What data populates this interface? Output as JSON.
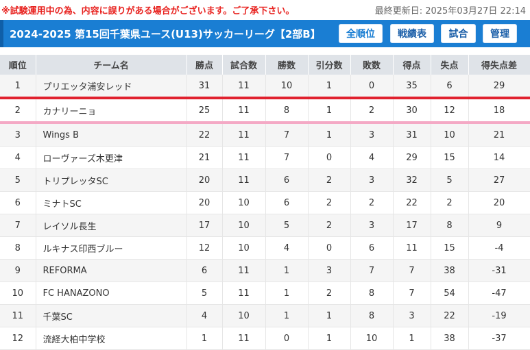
{
  "notice": "※試験運用中の為、内容に誤りがある場合がございます。ご了承下さい。",
  "last_updated": "最終更新日: 2025年03月27日 22:14",
  "league_title": "2024-2025 第15回千葉県ユース(U13)サッカーリーグ【2部B】",
  "nav": {
    "standings": "全順位",
    "results": "戦績表",
    "matches": "試合",
    "manage": "管理"
  },
  "colors": {
    "header_bg": "#1a7ed3",
    "promotion_line": "#e0212e",
    "playoff_line": "#f4a9c5",
    "notice_text": "#e8221f"
  },
  "table": {
    "columns": [
      "順位",
      "チーム名",
      "勝点",
      "試合数",
      "勝数",
      "引分数",
      "敗数",
      "得点",
      "失点",
      "得失点差"
    ],
    "rows": [
      [
        "1",
        "プリエッタ浦安レッド",
        "31",
        "11",
        "10",
        "1",
        "0",
        "35",
        "6",
        "29"
      ],
      [
        "2",
        "カナリーニョ",
        "25",
        "11",
        "8",
        "1",
        "2",
        "30",
        "12",
        "18"
      ],
      [
        "3",
        "Wings B",
        "22",
        "11",
        "7",
        "1",
        "3",
        "31",
        "10",
        "21"
      ],
      [
        "4",
        "ローヴァーズ木更津",
        "21",
        "11",
        "7",
        "0",
        "4",
        "29",
        "15",
        "14"
      ],
      [
        "5",
        "トリプレッタSC",
        "20",
        "11",
        "6",
        "2",
        "3",
        "32",
        "5",
        "27"
      ],
      [
        "6",
        "ミナトSC",
        "20",
        "10",
        "6",
        "2",
        "2",
        "22",
        "2",
        "20"
      ],
      [
        "7",
        "レイソル長生",
        "17",
        "10",
        "5",
        "2",
        "3",
        "17",
        "8",
        "9"
      ],
      [
        "8",
        "ルキナス印西ブルー",
        "12",
        "10",
        "4",
        "0",
        "6",
        "11",
        "15",
        "-4"
      ],
      [
        "9",
        "REFORMA",
        "6",
        "11",
        "1",
        "3",
        "7",
        "7",
        "38",
        "-31"
      ],
      [
        "10",
        "FC HANAZONO",
        "5",
        "11",
        "1",
        "2",
        "8",
        "7",
        "54",
        "-47"
      ],
      [
        "11",
        "千葉SC",
        "4",
        "10",
        "1",
        "1",
        "8",
        "3",
        "22",
        "-19"
      ],
      [
        "12",
        "流経大柏中学校",
        "1",
        "11",
        "0",
        "1",
        "10",
        "1",
        "38",
        "-37"
      ]
    ]
  }
}
